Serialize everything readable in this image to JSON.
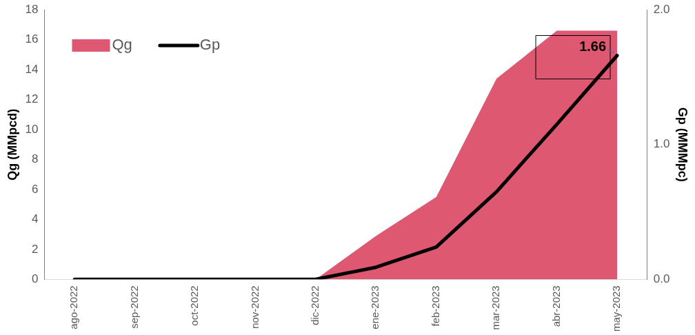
{
  "chart_data": {
    "type": "area",
    "ylabel": "Qg (MMpcd)",
    "y2label": "Gp (MMMpc)",
    "categories": [
      "ago-2022",
      "sep-2022",
      "oct-2022",
      "nov-2022",
      "dic-2022",
      "ene-2023",
      "feb-2023",
      "mar-2023",
      "abr-2023",
      "may-2023"
    ],
    "series": [
      {
        "name": "Qg",
        "color": "#dd5870",
        "values": [
          0,
          0,
          0,
          0,
          0,
          2.9,
          5.5,
          13.4,
          16.6,
          16.6
        ]
      },
      {
        "name": "Gp",
        "type": "line",
        "axis": "y2",
        "color": "#000000",
        "values": [
          0,
          0,
          0,
          0,
          0,
          0.09,
          0.24,
          0.65,
          1.15,
          1.66
        ],
        "value_labels": [
          null,
          null,
          null,
          null,
          null,
          null,
          null,
          null,
          null,
          "1.66"
        ]
      }
    ],
    "ylim": [
      0,
      18
    ],
    "yticks": [
      0,
      2,
      4,
      6,
      8,
      10,
      12,
      14,
      16,
      18
    ],
    "y2lim": [
      0,
      2
    ],
    "y2ticks": [
      {
        "value": 0,
        "label": "0.0"
      },
      {
        "value": 1,
        "label": "1.0"
      },
      {
        "value": 2,
        "label": "2.0"
      }
    ],
    "grid": false,
    "legend": "top left",
    "marker": "none"
  }
}
